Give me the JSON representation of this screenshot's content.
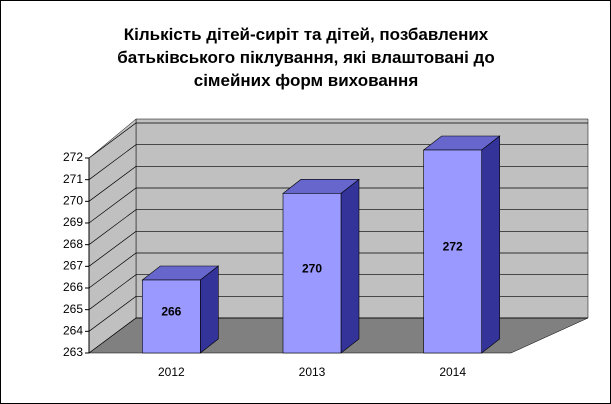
{
  "chart_data": {
    "type": "bar3d",
    "title": "Кількість дітей-сиріт та дітей, позбавлених батьківського піклування, які влаштовані до сімейних форм виховання",
    "categories": [
      "2012",
      "2013",
      "2014"
    ],
    "values": [
      266,
      270,
      272
    ],
    "color": "#9999ff",
    "ylim": [
      263,
      272
    ],
    "yticks": [
      263,
      264,
      265,
      266,
      267,
      268,
      269,
      270,
      271,
      272
    ],
    "grid": true
  }
}
